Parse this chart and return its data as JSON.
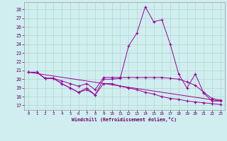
{
  "xlabel": "Windchill (Refroidissement éolien,°C)",
  "background_color": "#d0eef0",
  "grid_color": "#b0d8cc",
  "line_color": "#990099",
  "x_ticks": [
    0,
    1,
    2,
    3,
    4,
    5,
    6,
    7,
    8,
    9,
    10,
    11,
    12,
    13,
    14,
    15,
    16,
    17,
    18,
    19,
    20,
    21,
    22,
    23
  ],
  "y_ticks": [
    17,
    18,
    19,
    20,
    21,
    22,
    23,
    24,
    25,
    26,
    27,
    28
  ],
  "ylim": [
    16.5,
    28.8
  ],
  "xlim": [
    -0.5,
    23.5
  ],
  "series": [
    {
      "x": [
        0,
        1,
        2,
        3,
        4,
        5,
        6,
        7,
        8,
        9,
        10,
        11,
        12,
        13,
        14,
        15,
        16,
        17,
        18,
        19,
        20,
        21,
        22,
        23
      ],
      "y": [
        20.8,
        20.8,
        20.1,
        20.1,
        19.5,
        19.0,
        18.5,
        19.0,
        18.2,
        20.0,
        20.0,
        20.1,
        23.8,
        25.3,
        28.3,
        26.6,
        26.8,
        24.0,
        20.6,
        19.0,
        20.6,
        18.4,
        17.5,
        17.5
      ]
    },
    {
      "x": [
        0,
        1,
        2,
        3,
        4,
        5,
        6,
        7,
        8,
        9,
        10,
        11,
        12,
        13,
        14,
        15,
        16,
        17,
        18,
        19,
        20,
        21,
        22,
        23
      ],
      "y": [
        20.8,
        20.8,
        20.1,
        20.1,
        19.8,
        19.5,
        19.2,
        19.5,
        18.8,
        20.2,
        20.2,
        20.2,
        20.2,
        20.2,
        20.2,
        20.2,
        20.2,
        20.1,
        20.0,
        19.7,
        19.3,
        18.5,
        17.8,
        17.6
      ]
    },
    {
      "x": [
        0,
        1,
        2,
        3,
        4,
        5,
        6,
        7,
        8,
        9,
        10,
        11,
        12,
        13,
        14,
        15,
        16,
        17,
        18,
        19,
        20,
        21,
        22,
        23
      ],
      "y": [
        20.8,
        20.8,
        20.1,
        20.1,
        19.5,
        19.0,
        18.5,
        18.8,
        18.2,
        19.5,
        19.5,
        19.2,
        19.0,
        18.8,
        18.5,
        18.3,
        18.0,
        17.8,
        17.7,
        17.5,
        17.4,
        17.3,
        17.2,
        17.1
      ]
    },
    {
      "x": [
        0,
        23
      ],
      "y": [
        20.8,
        17.5
      ]
    }
  ]
}
